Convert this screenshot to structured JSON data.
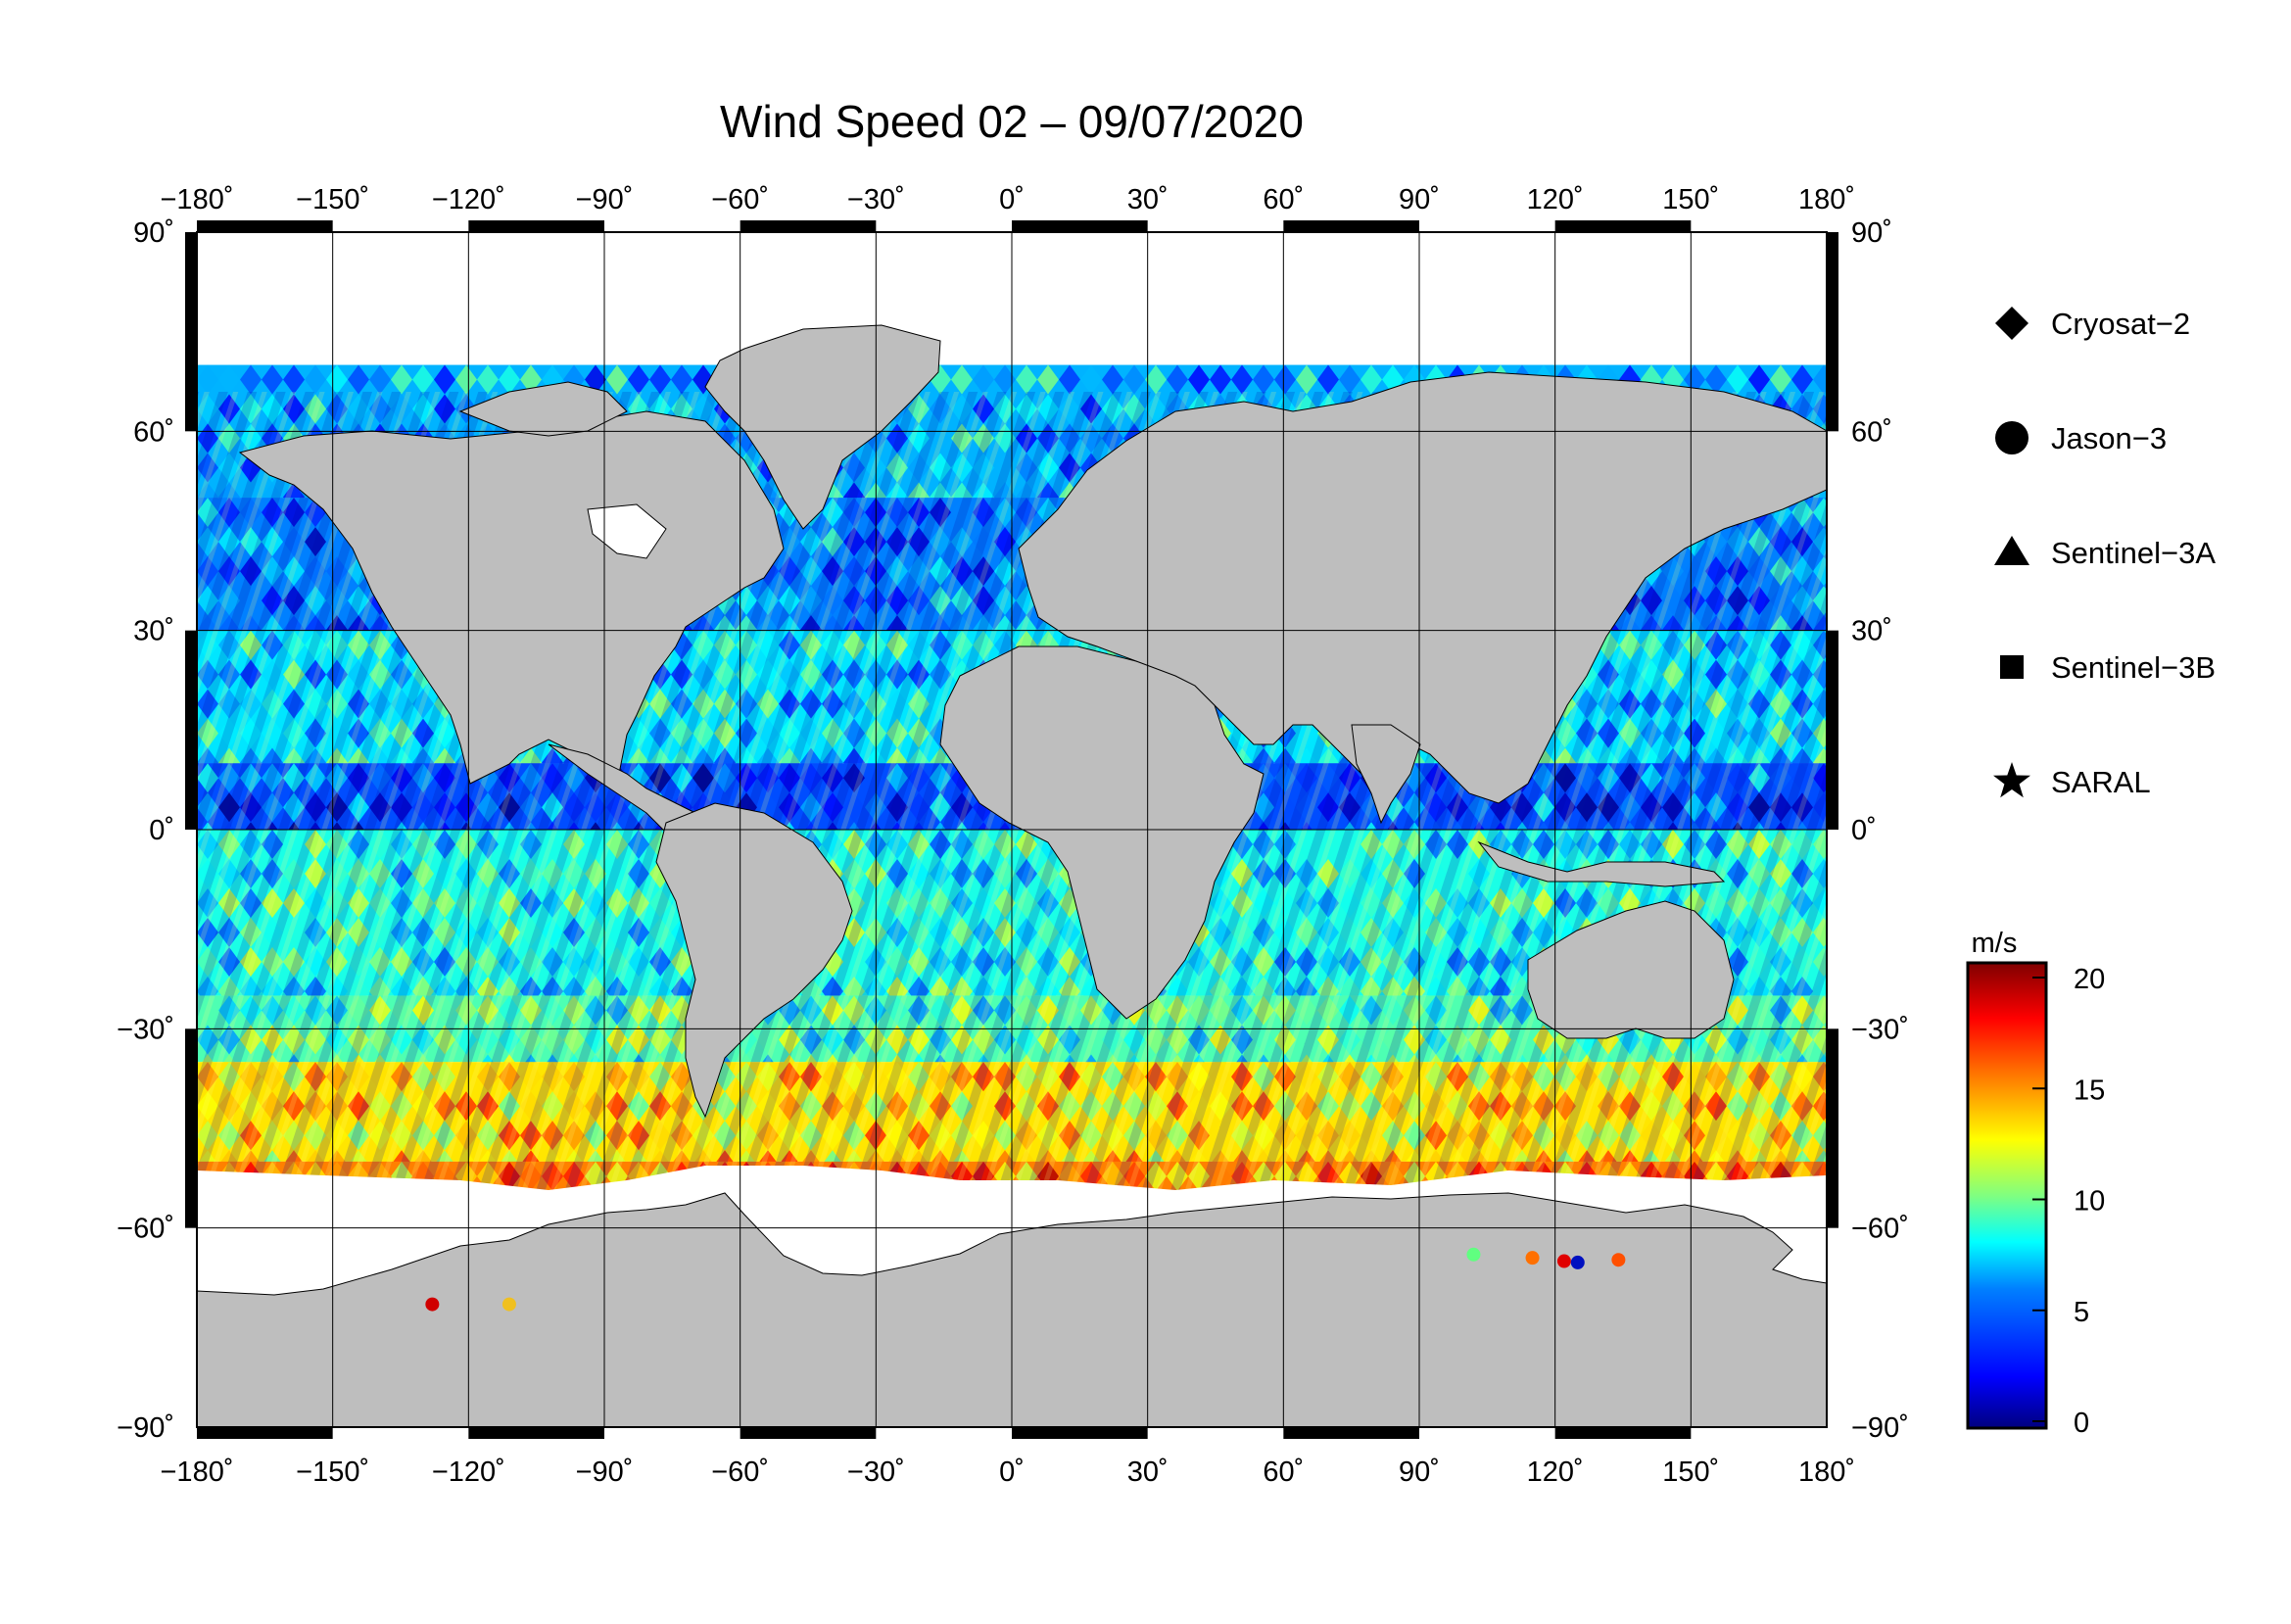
{
  "map": {
    "title": "Wind Speed 02 – 09/07/2020",
    "lon_ticks": [
      {
        "value": -180,
        "label": "−180˚"
      },
      {
        "value": -150,
        "label": "−150˚"
      },
      {
        "value": -120,
        "label": "−120˚"
      },
      {
        "value": -90,
        "label": "−90˚"
      },
      {
        "value": -60,
        "label": "−60˚"
      },
      {
        "value": -30,
        "label": "−30˚"
      },
      {
        "value": 0,
        "label": "0˚"
      },
      {
        "value": 30,
        "label": "30˚"
      },
      {
        "value": 60,
        "label": "60˚"
      },
      {
        "value": 90,
        "label": "90˚"
      },
      {
        "value": 120,
        "label": "120˚"
      },
      {
        "value": 150,
        "label": "150˚"
      },
      {
        "value": 180,
        "label": "180˚"
      }
    ],
    "lat_ticks": [
      {
        "value": 90,
        "label": "90˚"
      },
      {
        "value": 60,
        "label": "60˚"
      },
      {
        "value": 30,
        "label": "30˚"
      },
      {
        "value": 0,
        "label": "0˚"
      },
      {
        "value": -30,
        "label": "−30˚"
      },
      {
        "value": -60,
        "label": "−60˚"
      },
      {
        "value": -90,
        "label": "−90˚"
      }
    ],
    "lon_range": [
      -180,
      180
    ],
    "lat_range": [
      -90,
      90
    ],
    "grid": true,
    "land_color": "#bebebe",
    "ice_color": "#ffffff"
  },
  "legend": {
    "items": [
      {
        "label": "Cryosat−2",
        "icon": "diamond-icon"
      },
      {
        "label": "Jason−3",
        "icon": "circle-icon"
      },
      {
        "label": "Sentinel−3A",
        "icon": "triangle-icon"
      },
      {
        "label": "Sentinel−3B",
        "icon": "square-icon"
      },
      {
        "label": "SARAL",
        "icon": "star-icon"
      }
    ]
  },
  "colorbar": {
    "unit": "m/s",
    "min": 0,
    "max": 20,
    "ticks": [
      {
        "value": 20,
        "label": "20"
      },
      {
        "value": 15,
        "label": "15"
      },
      {
        "value": 10,
        "label": "10"
      },
      {
        "value": 5,
        "label": "5"
      },
      {
        "value": 0,
        "label": "0"
      }
    ],
    "colors": [
      "#00007f",
      "#0000ff",
      "#0080ff",
      "#00ffff",
      "#80ff80",
      "#ffff00",
      "#ff8000",
      "#ff0000",
      "#7f0000"
    ]
  },
  "wind_field": {
    "description_free": true,
    "bands": [
      {
        "lat_from": 70,
        "lat_to": 50,
        "speed": 6
      },
      {
        "lat_from": 50,
        "lat_to": 30,
        "speed": 5
      },
      {
        "lat_from": 30,
        "lat_to": 10,
        "speed": 7
      },
      {
        "lat_from": 10,
        "lat_to": 0,
        "speed": 4
      },
      {
        "lat_from": 0,
        "lat_to": -25,
        "speed": 8
      },
      {
        "lat_from": -25,
        "lat_to": -35,
        "speed": 9
      },
      {
        "lat_from": -35,
        "lat_to": -50,
        "speed": 13
      },
      {
        "lat_from": -50,
        "lat_to": -62,
        "speed": 15
      },
      {
        "lat_from": -62,
        "lat_to": -66,
        "speed": 9
      }
    ]
  }
}
